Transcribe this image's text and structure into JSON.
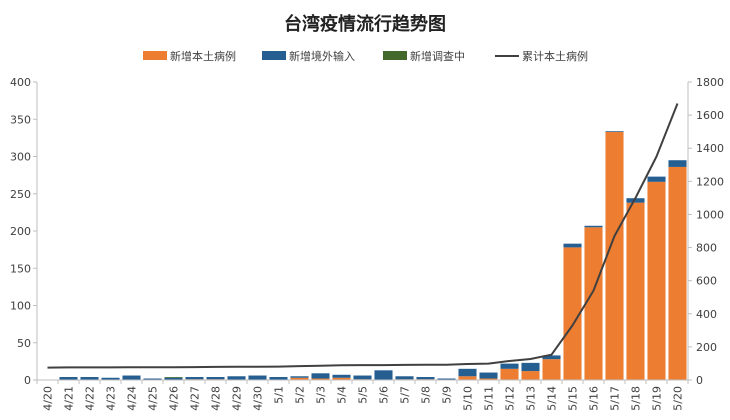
{
  "chart_data": {
    "type": "bar",
    "title": "台湾疫情流行趋势图",
    "categories": [
      "4/20",
      "4/21",
      "4/22",
      "4/23",
      "4/24",
      "4/25",
      "4/26",
      "4/27",
      "4/28",
      "4/29",
      "4/30",
      "5/1",
      "5/2",
      "5/3",
      "5/4",
      "5/5",
      "5/6",
      "5/7",
      "5/8",
      "5/9",
      "5/10",
      "5/11",
      "5/12",
      "5/13",
      "5/14",
      "5/15",
      "5/16",
      "5/17",
      "5/18",
      "5/19",
      "5/20"
    ],
    "series": [
      {
        "name": "新增本土病例",
        "type": "bar",
        "axis": "left",
        "stack": "daily",
        "color": "#ed7d31",
        "values": [
          0,
          0,
          0,
          0,
          0,
          0,
          0,
          1,
          1,
          0,
          0,
          0,
          3,
          2,
          3,
          1,
          0,
          1,
          1,
          0,
          5,
          2,
          15,
          12,
          28,
          178,
          205,
          333,
          238,
          266,
          286
        ]
      },
      {
        "name": "新增境外输入",
        "type": "bar",
        "axis": "left",
        "stack": "daily",
        "color": "#255e91",
        "values": [
          0,
          4,
          4,
          3,
          6,
          2,
          3,
          3,
          3,
          5,
          6,
          4,
          2,
          7,
          4,
          5,
          13,
          4,
          3,
          2,
          10,
          8,
          7,
          11,
          5,
          5,
          2,
          1,
          6,
          7,
          9
        ]
      },
      {
        "name": "新增调查中",
        "type": "bar",
        "axis": "left",
        "stack": "daily",
        "color": "#43682b",
        "values": [
          0,
          0,
          0,
          0,
          0,
          0,
          1,
          0,
          0,
          0,
          0,
          0,
          0,
          0,
          0,
          0,
          0,
          0,
          0,
          0,
          0,
          0,
          0,
          0,
          0,
          0,
          0,
          0,
          0,
          0,
          0
        ]
      },
      {
        "name": "累计本土病例",
        "type": "line",
        "axis": "right",
        "color": "#404040",
        "values": [
          75,
          76,
          76,
          76,
          77,
          77,
          77,
          78,
          79,
          80,
          80,
          81,
          84,
          86,
          89,
          90,
          90,
          91,
          92,
          92,
          97,
          99,
          115,
          127,
          153,
          330,
          540,
          870,
          1100,
          1350,
          1670
        ]
      }
    ],
    "y_left": {
      "min": 0,
      "max": 400,
      "ticks": [
        0,
        50,
        100,
        150,
        200,
        250,
        300,
        350,
        400
      ]
    },
    "y_right": {
      "min": 0,
      "max": 1800,
      "ticks": [
        0,
        200,
        400,
        600,
        800,
        1000,
        1200,
        1400,
        1600,
        1800
      ]
    },
    "grid": false,
    "legend_position": "top"
  }
}
